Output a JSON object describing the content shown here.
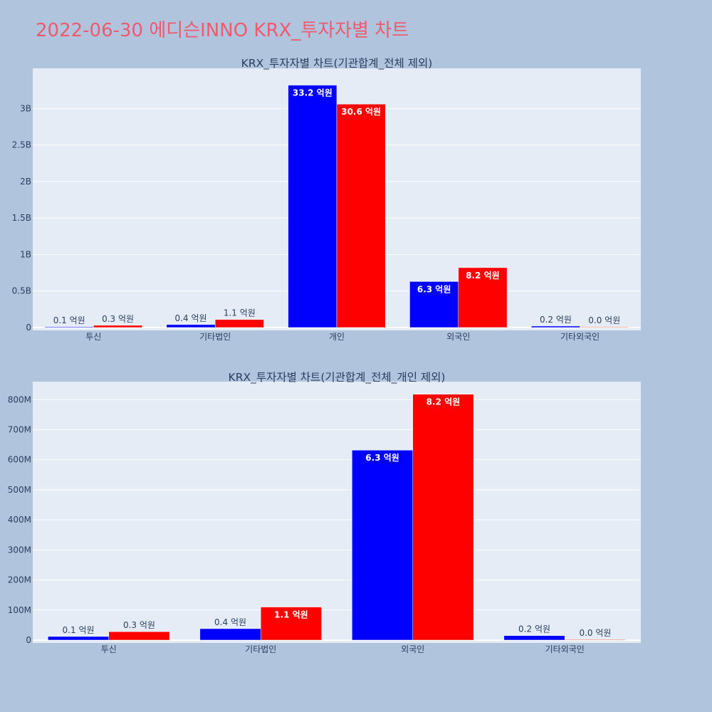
{
  "page": {
    "title": "2022-06-30 에디슨INNO KRX_투자자별 차트"
  },
  "colors": {
    "buy": "#0000ff",
    "sell": "#ff0000",
    "plot_bg": "#e5ecf6",
    "page_bg": "#b0c4de",
    "title": "#ef5a6f"
  },
  "chart_data": [
    {
      "type": "bar",
      "title": "KRX_투자자별 차트(기관합계_전체 제외)",
      "categories": [
        "투신",
        "기타법인",
        "개인",
        "외국인",
        "기타외국인"
      ],
      "ylim": [
        0,
        3550000000
      ],
      "ytick_values": [
        0,
        500000000,
        1000000000,
        1500000000,
        2000000000,
        2500000000,
        3000000000
      ],
      "ytick_labels": [
        "0",
        "0.5B",
        "1B",
        "1.5B",
        "2B",
        "2.5B",
        "3B"
      ],
      "grid": true,
      "series": [
        {
          "color": "#0000ff",
          "values": [
            10000000,
            40000000,
            3320000000,
            630000000,
            20000000
          ],
          "labels": [
            "0.1 억원",
            "0.4 억원",
            "33.2 억원",
            "6.3 억원",
            "0.2 억원"
          ]
        },
        {
          "color": "#ff0000",
          "values": [
            30000000,
            110000000,
            3060000000,
            820000000,
            2000000
          ],
          "labels": [
            "0.3 억원",
            "1.1 억원",
            "30.6 억원",
            "8.2 억원",
            "0.0 억원"
          ]
        }
      ]
    },
    {
      "type": "bar",
      "title": "KRX_투자자별 차트(기관합계_전체_개인 제외)",
      "categories": [
        "투신",
        "기타법인",
        "외국인",
        "기타외국인"
      ],
      "ylim": [
        0,
        860000000
      ],
      "ytick_values": [
        0,
        100000000,
        200000000,
        300000000,
        400000000,
        500000000,
        600000000,
        700000000,
        800000000
      ],
      "ytick_labels": [
        "0",
        "100M",
        "200M",
        "300M",
        "400M",
        "500M",
        "600M",
        "700M",
        "800M"
      ],
      "grid": true,
      "series": [
        {
          "color": "#0000ff",
          "values": [
            12000000,
            38000000,
            632000000,
            15000000
          ],
          "labels": [
            "0.1 억원",
            "0.4 억원",
            "6.3 억원",
            "0.2 억원"
          ]
        },
        {
          "color": "#ff0000",
          "values": [
            28000000,
            110000000,
            818000000,
            2000000
          ],
          "labels": [
            "0.3 억원",
            "1.1 억원",
            "8.2 억원",
            "0.0 억원"
          ]
        }
      ]
    }
  ]
}
